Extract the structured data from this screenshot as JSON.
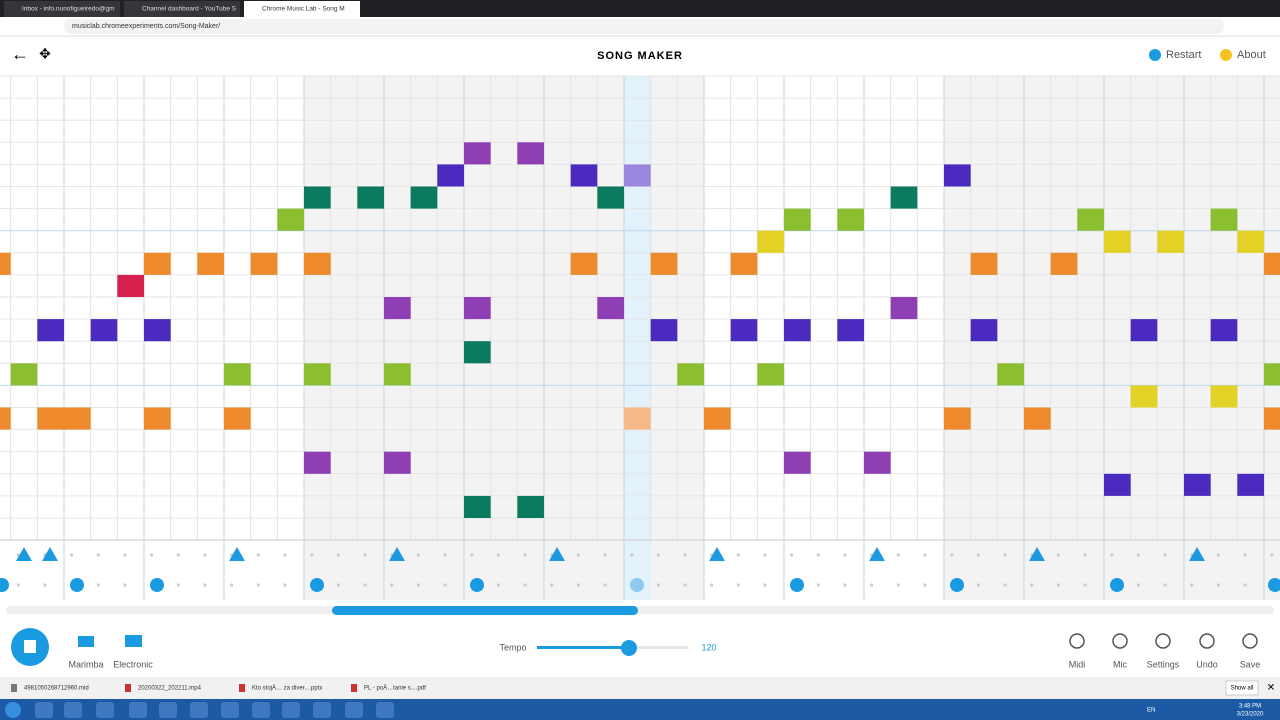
{
  "browser": {
    "tabs": [
      "Inbox - info.nunofigueiredo@gm",
      "Channel dashboard - YouTube S",
      "Chrome Music Lab - Song M"
    ],
    "url": "musiclab.chromeexperiments.com/Song-Maker/"
  },
  "header": {
    "title": "SONG MAKER",
    "restart": "Restart",
    "about": "About"
  },
  "toolbar": {
    "instruments": [
      "Marimba",
      "Electronic"
    ],
    "tempo_label": "Tempo",
    "tempo": 120,
    "tools": [
      "Midi",
      "Mic",
      "Settings",
      "Undo",
      "Save"
    ]
  },
  "downloads": {
    "items": [
      "4981050268712960.mid",
      "20200322_202211.mp4",
      "Kto stojÄ… za diver....pptx",
      "PL - poÄ…tanie s....pdf"
    ],
    "show_all": "Show all"
  },
  "taskbar": {
    "lang": "EN",
    "time": "3:48 PM",
    "date": "3/23/2020"
  }
}
